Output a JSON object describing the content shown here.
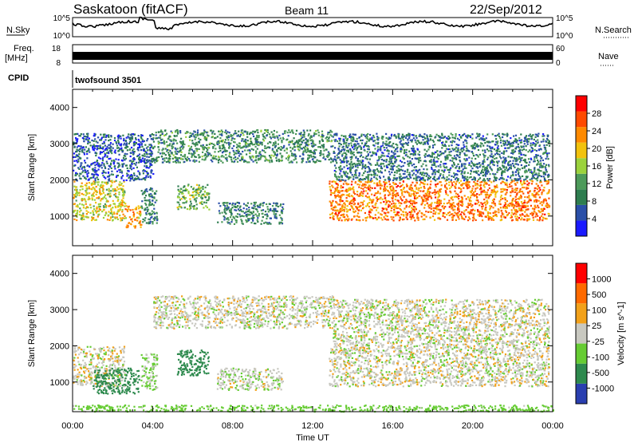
{
  "header": {
    "station": "Saskatoon (fitACF)",
    "beam": "Beam 11",
    "date": "22/Sep/2012"
  },
  "summary": {
    "nsky_label": "N.Sky",
    "nsky_ticks": [
      "10^5",
      "10^0"
    ],
    "nsearch_label": "N.Search",
    "freq_label": "Freq.",
    "freq_unit": "[MHz]",
    "freq_ticks": [
      "18",
      "8"
    ],
    "nave_label": "Nave",
    "nave_ticks": [
      "60",
      "0"
    ],
    "cpid_label": "CPID",
    "cpid_value": "twofsound 3501"
  },
  "colors": {
    "power": [
      "#1a1aff",
      "#2a4fa8",
      "#2e7d4f",
      "#4d9a5a",
      "#9bd23c",
      "#f2c20d",
      "#ff8a00",
      "#ff4a00",
      "#ff0000"
    ],
    "velocity": [
      "#2a3fb0",
      "#2e8a4e",
      "#66cc33",
      "#c8c8c0",
      "#f2a11a",
      "#ff6a00",
      "#ff0000"
    ]
  },
  "chart_data": [
    {
      "type": "heatmap",
      "panel": "power",
      "ylabel": "Slant Range [km]",
      "yticks": [
        "4000",
        "3000",
        "2000",
        "1000"
      ],
      "ylim": [
        180,
        4500
      ],
      "xlim": [
        0,
        24
      ],
      "colorbar_label": "Power [dB]",
      "colorbar_ticks": [
        "28",
        "24",
        "20",
        "16",
        "12",
        "8",
        "4"
      ],
      "colorbar_range": [
        0,
        32
      ],
      "regions": [
        {
          "t0": 0.0,
          "t1": 2.6,
          "r0": 900,
          "r1": 2000,
          "level": 18
        },
        {
          "t0": 2.6,
          "t1": 3.4,
          "r0": 700,
          "r1": 1300,
          "level": 22
        },
        {
          "t0": 3.4,
          "t1": 4.2,
          "r0": 800,
          "r1": 1800,
          "level": 9
        },
        {
          "t0": 4.0,
          "t1": 13.0,
          "r0": 2500,
          "r1": 3400,
          "level": 10
        },
        {
          "t0": 7.2,
          "t1": 10.5,
          "r0": 800,
          "r1": 1400,
          "level": 9
        },
        {
          "t0": 5.2,
          "t1": 6.8,
          "r0": 1200,
          "r1": 1900,
          "level": 14
        },
        {
          "t0": 12.8,
          "t1": 23.8,
          "r0": 900,
          "r1": 2000,
          "level": 24
        },
        {
          "t0": 13.0,
          "t1": 23.8,
          "r0": 2000,
          "r1": 3300,
          "level": 8
        },
        {
          "t0": 0.0,
          "t1": 4.0,
          "r0": 2000,
          "r1": 3300,
          "level": 6
        }
      ]
    },
    {
      "type": "heatmap",
      "panel": "velocity",
      "ylabel": "Slant Range [km]",
      "yticks": [
        "4000",
        "3000",
        "2000",
        "1000"
      ],
      "ylim": [
        180,
        4500
      ],
      "xlim": [
        0,
        24
      ],
      "colorbar_label": "Velocity [m s^-1]",
      "colorbar_ticks": [
        "1000",
        "500",
        "100",
        "25",
        "-25",
        "-100",
        "-500",
        "-1000"
      ],
      "regions": [
        {
          "t0": 0.0,
          "t1": 2.6,
          "r0": 900,
          "r1": 2000,
          "level": 0
        },
        {
          "t0": 1.0,
          "t1": 3.3,
          "r0": 700,
          "r1": 1400,
          "level": 180
        },
        {
          "t0": 3.4,
          "t1": 4.2,
          "r0": 800,
          "r1": 1800,
          "level": 40
        },
        {
          "t0": 4.0,
          "t1": 13.0,
          "r0": 2500,
          "r1": 3400,
          "level": 0
        },
        {
          "t0": 7.2,
          "t1": 10.5,
          "r0": 800,
          "r1": 1400,
          "level": 10
        },
        {
          "t0": 5.2,
          "t1": 6.8,
          "r0": 1200,
          "r1": 1900,
          "level": 150
        },
        {
          "t0": 12.8,
          "t1": 23.8,
          "r0": 900,
          "r1": 2000,
          "level": 0
        },
        {
          "t0": 13.0,
          "t1": 23.8,
          "r0": 2000,
          "r1": 3300,
          "level": 0
        },
        {
          "t0": 0.0,
          "t1": 24.0,
          "r0": 200,
          "r1": 380,
          "level": 60
        }
      ]
    }
  ],
  "xaxis": {
    "label": "Time UT",
    "ticks": [
      "00:00",
      "04:00",
      "08:00",
      "12:00",
      "16:00",
      "20:00",
      "00:00"
    ]
  }
}
